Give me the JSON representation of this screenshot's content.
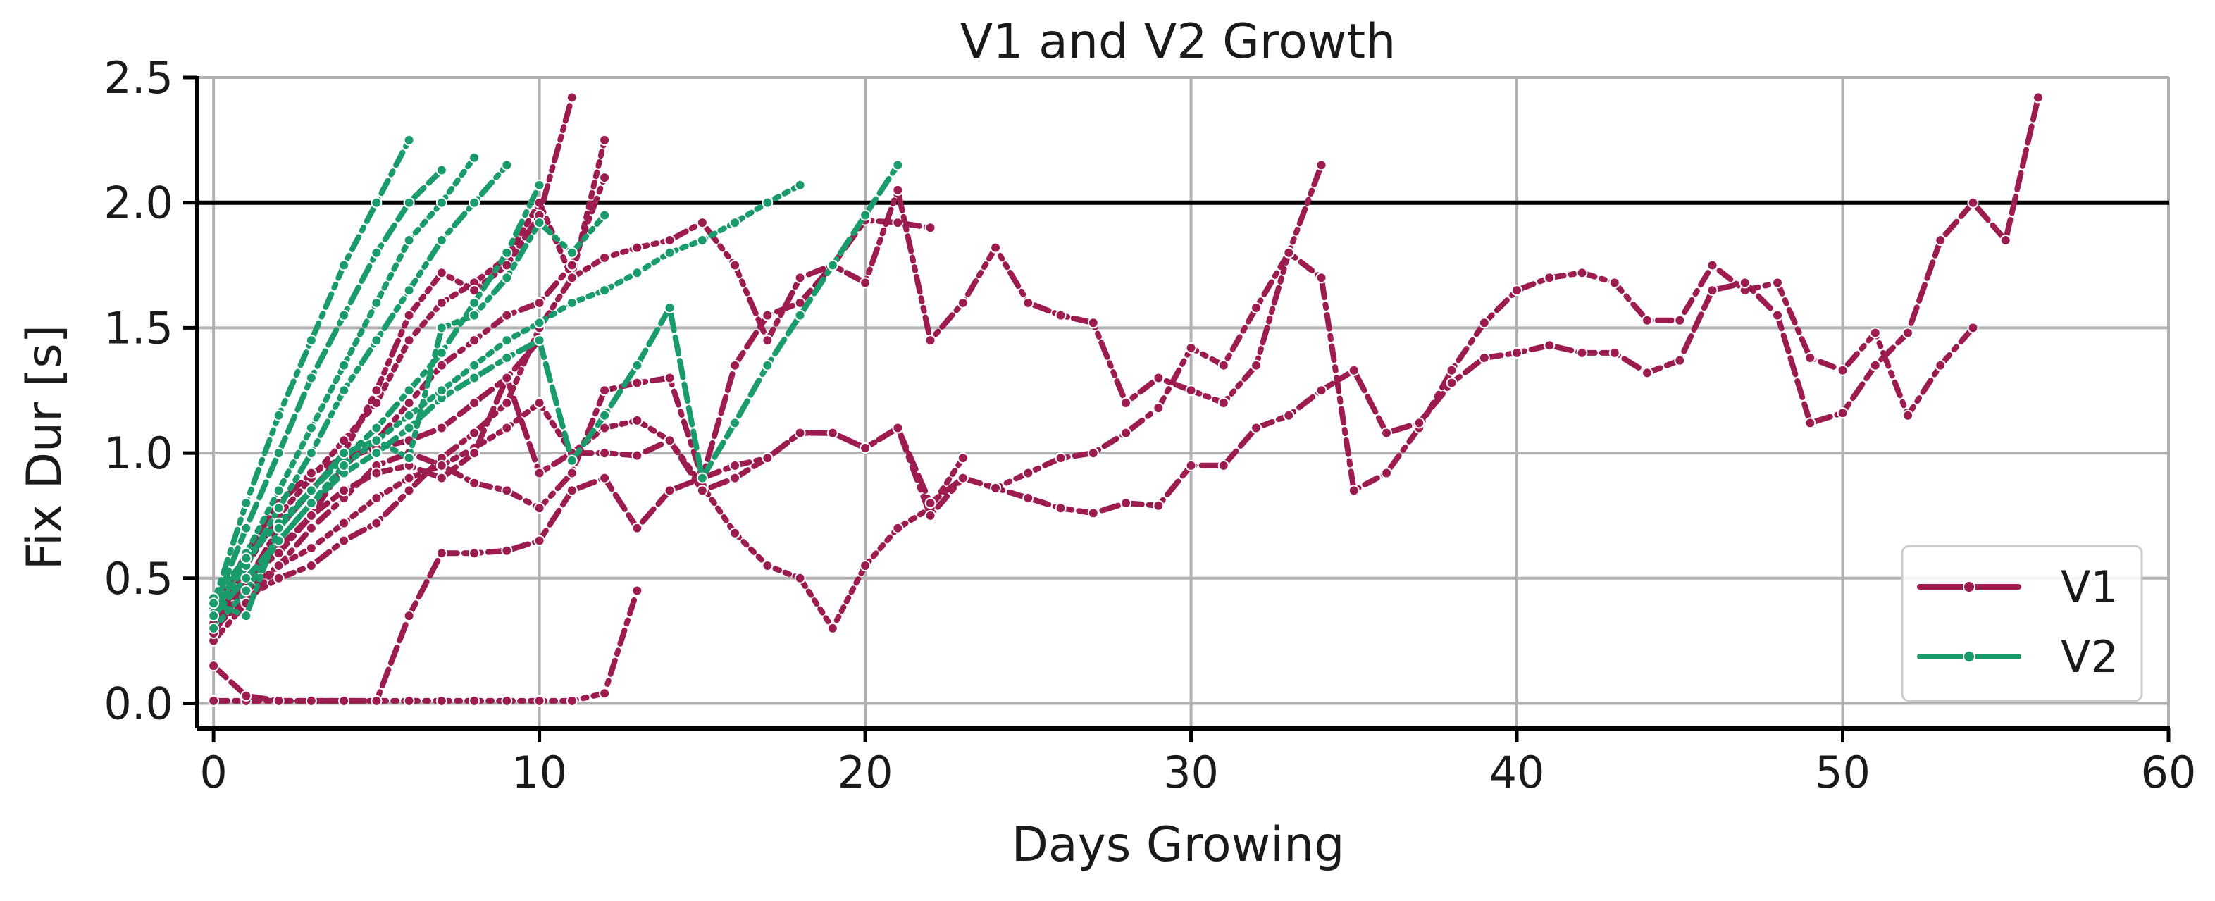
{
  "chart_data": {
    "type": "line",
    "title": "V1 and V2 Growth",
    "xlabel": "Days Growing",
    "ylabel": "Fix Dur [s]",
    "xlim": [
      -0.5,
      60
    ],
    "ylim": [
      -0.1,
      2.5
    ],
    "xticks": [
      0,
      10,
      20,
      30,
      40,
      50,
      60
    ],
    "yticks": [
      0.0,
      0.5,
      1.0,
      1.5,
      2.0,
      2.5
    ],
    "xtick_labels": [
      "0",
      "10",
      "20",
      "30",
      "40",
      "50",
      "60"
    ],
    "ytick_labels": [
      "0.0",
      "0.5",
      "1.0",
      "1.5",
      "2.0",
      "2.5"
    ],
    "grid": true,
    "threshold": {
      "y": 2.0,
      "color": "#000000"
    },
    "legend": {
      "placement": "bottom-right",
      "entries": [
        {
          "label": "V1",
          "color": "#9c1c4f"
        },
        {
          "label": "V2",
          "color": "#1a9b6b"
        }
      ]
    },
    "groups": [
      {
        "name": "V1",
        "color": "#9c1c4f",
        "runs": [
          {
            "x": [
              0,
              1,
              2,
              3,
              4,
              5,
              6,
              7,
              8,
              9,
              10,
              11,
              12,
              13
            ],
            "y": [
              0.01,
              0.01,
              0.01,
              0.01,
              0.01,
              0.01,
              0.01,
              0.01,
              0.01,
              0.01,
              0.01,
              0.01,
              0.04,
              0.45
            ]
          },
          {
            "x": [
              0,
              1,
              2,
              3,
              4,
              5,
              6,
              7,
              8,
              9,
              10,
              11,
              12,
              13,
              14,
              15,
              16,
              17,
              18,
              19,
              20,
              21,
              22
            ],
            "y": [
              0.15,
              0.03,
              0.01,
              0.01,
              0.01,
              0.01,
              0.35,
              0.6,
              0.6,
              0.61,
              0.65,
              0.85,
              0.9,
              0.7,
              0.85,
              0.9,
              1.35,
              1.55,
              1.6,
              1.75,
              1.93,
              1.92,
              1.9
            ]
          },
          {
            "x": [
              0,
              1,
              2,
              3,
              4,
              5,
              6,
              7,
              8,
              9,
              10,
              11,
              12,
              13,
              14,
              15,
              16,
              17,
              18,
              19,
              20,
              21,
              22,
              23
            ],
            "y": [
              0.3,
              0.45,
              0.55,
              0.62,
              0.72,
              0.82,
              0.9,
              0.95,
              1.02,
              1.1,
              1.2,
              1.0,
              1.1,
              1.13,
              1.05,
              0.87,
              0.68,
              0.55,
              0.5,
              0.3,
              0.55,
              0.7,
              0.78,
              0.98
            ]
          },
          {
            "x": [
              0,
              1,
              2,
              3,
              4,
              5,
              6,
              7,
              8,
              9,
              10,
              11,
              12,
              13,
              14,
              15,
              16,
              17,
              18,
              19,
              20,
              21,
              22,
              23,
              24,
              25,
              26,
              27,
              28,
              29,
              30,
              31,
              32,
              33,
              34
            ],
            "y": [
              0.3,
              0.42,
              0.5,
              0.55,
              0.65,
              0.72,
              0.85,
              0.98,
              1.08,
              1.2,
              1.5,
              1.7,
              1.78,
              1.82,
              1.85,
              1.92,
              1.75,
              1.45,
              1.7,
              1.75,
              1.68,
              2.05,
              1.45,
              1.6,
              1.82,
              1.6,
              1.55,
              1.52,
              1.2,
              1.3,
              1.25,
              1.2,
              1.35,
              1.8,
              2.15
            ]
          },
          {
            "x": [
              0,
              1,
              2,
              3,
              4,
              5,
              6,
              7,
              8,
              9,
              10,
              11,
              12,
              13,
              14,
              15,
              16,
              17,
              18,
              19,
              20,
              21,
              22,
              23,
              24,
              25,
              26,
              27,
              28,
              29,
              30,
              31,
              32,
              33,
              34,
              35,
              36,
              37,
              38,
              39,
              40,
              41,
              42,
              43,
              44,
              45,
              46,
              47,
              48,
              49,
              50,
              51,
              52,
              53,
              54
            ],
            "y": [
              0.25,
              0.4,
              0.55,
              0.7,
              0.82,
              0.95,
              1.0,
              0.95,
              0.88,
              0.85,
              0.78,
              0.92,
              1.25,
              1.28,
              1.3,
              0.9,
              0.95,
              0.98,
              1.08,
              1.08,
              1.02,
              1.1,
              0.75,
              0.9,
              0.86,
              0.92,
              0.98,
              1.0,
              1.08,
              1.18,
              1.42,
              1.35,
              1.58,
              1.8,
              1.7,
              0.85,
              0.92,
              1.1,
              1.33,
              1.52,
              1.65,
              1.7,
              1.72,
              1.68,
              1.53,
              1.53,
              1.75,
              1.65,
              1.68,
              1.38,
              1.33,
              1.48,
              1.15,
              1.35,
              1.5
            ]
          },
          {
            "x": [
              0,
              1,
              2,
              3,
              4,
              5,
              6,
              7,
              8,
              9,
              10,
              11,
              12,
              13,
              14,
              15,
              16,
              17,
              18,
              19,
              20,
              21,
              22,
              23,
              24,
              25,
              26,
              27,
              28,
              29,
              30,
              31,
              32,
              33,
              34,
              35,
              36,
              37,
              38,
              39,
              40,
              41,
              42,
              43,
              44,
              45,
              46,
              47,
              48,
              49,
              50,
              51,
              52,
              53,
              54,
              55,
              56
            ],
            "y": [
              0.35,
              0.5,
              0.62,
              0.75,
              0.85,
              0.92,
              0.95,
              0.9,
              1.0,
              1.3,
              0.92,
              1.0,
              1.0,
              0.99,
              1.05,
              0.85,
              0.9,
              0.98,
              1.08,
              1.08,
              1.02,
              1.1,
              0.8,
              0.9,
              0.86,
              0.82,
              0.78,
              0.76,
              0.8,
              0.79,
              0.95,
              0.95,
              1.1,
              1.15,
              1.25,
              1.33,
              1.08,
              1.12,
              1.28,
              1.38,
              1.4,
              1.43,
              1.4,
              1.4,
              1.32,
              1.37,
              1.65,
              1.68,
              1.55,
              1.12,
              1.16,
              1.35,
              1.48,
              1.85,
              2.0,
              1.85,
              2.42
            ]
          },
          {
            "x": [
              0,
              1,
              2,
              3,
              4,
              5,
              6,
              7,
              8,
              9,
              10,
              11,
              12
            ],
            "y": [
              0.3,
              0.55,
              0.75,
              0.9,
              1.05,
              1.2,
              1.45,
              1.6,
              1.68,
              1.78,
              2.0,
              1.7,
              2.25
            ]
          },
          {
            "x": [
              0,
              1,
              2,
              3,
              4,
              5,
              6,
              7,
              8,
              9,
              10,
              11
            ],
            "y": [
              0.28,
              0.48,
              0.7,
              0.85,
              1.0,
              1.25,
              1.55,
              1.72,
              1.65,
              1.75,
              1.95,
              2.42
            ]
          },
          {
            "x": [
              0,
              1,
              2,
              3,
              4,
              5,
              6,
              7,
              8,
              9,
              10,
              11,
              12
            ],
            "y": [
              0.32,
              0.5,
              0.6,
              0.75,
              0.95,
              1.05,
              1.2,
              1.35,
              1.45,
              1.55,
              1.6,
              1.75,
              2.1
            ]
          },
          {
            "x": [
              0,
              1,
              2,
              3,
              4,
              5,
              6,
              7,
              8,
              9,
              10
            ],
            "y": [
              0.35,
              0.6,
              0.8,
              0.92,
              0.98,
              1.02,
              1.05,
              1.1,
              1.2,
              1.3,
              1.45
            ]
          }
        ]
      },
      {
        "name": "V2",
        "color": "#1a9b6b",
        "runs": [
          {
            "x": [
              0,
              1,
              2,
              3,
              4,
              5,
              6
            ],
            "y": [
              0.4,
              0.8,
              1.15,
              1.45,
              1.75,
              2.0,
              2.25
            ]
          },
          {
            "x": [
              0,
              1,
              2,
              3,
              4,
              5,
              6,
              7
            ],
            "y": [
              0.38,
              0.7,
              1.0,
              1.3,
              1.55,
              1.8,
              2.0,
              2.13
            ]
          },
          {
            "x": [
              0,
              1,
              2,
              3,
              4,
              5,
              6,
              7,
              8
            ],
            "y": [
              0.35,
              0.6,
              0.85,
              1.1,
              1.35,
              1.6,
              1.85,
              2.0,
              2.18
            ]
          },
          {
            "x": [
              0,
              1,
              2,
              3,
              4,
              5,
              6,
              7,
              8,
              9
            ],
            "y": [
              0.36,
              0.55,
              0.78,
              1.0,
              1.25,
              1.45,
              1.65,
              1.85,
              2.0,
              2.15
            ]
          },
          {
            "x": [
              0,
              1,
              2,
              3,
              4,
              5,
              6,
              7,
              8,
              9,
              10
            ],
            "y": [
              0.42,
              0.58,
              0.72,
              0.85,
              0.98,
              1.1,
              1.25,
              1.4,
              1.6,
              1.8,
              2.07
            ]
          },
          {
            "x": [
              0,
              1,
              2,
              3,
              4,
              5,
              6,
              7,
              8,
              9,
              10,
              11,
              12,
              13,
              14,
              15,
              16,
              17,
              18,
              19,
              20,
              21
            ],
            "y": [
              0.35,
              0.5,
              0.65,
              0.8,
              0.92,
              1.0,
              1.1,
              1.22,
              1.3,
              1.38,
              1.45,
              0.97,
              1.15,
              1.35,
              1.58,
              0.9,
              1.12,
              1.35,
              1.55,
              1.75,
              1.95,
              2.15
            ]
          },
          {
            "x": [
              0,
              1,
              2,
              3,
              4,
              5,
              6,
              7,
              8,
              9,
              10,
              11,
              12,
              13,
              14,
              15,
              16,
              17,
              18
            ],
            "y": [
              0.3,
              0.45,
              0.65,
              0.8,
              0.95,
              1.05,
              1.15,
              1.25,
              1.35,
              1.45,
              1.52,
              1.6,
              1.65,
              1.72,
              1.8,
              1.85,
              1.92,
              2.0,
              2.07
            ]
          },
          {
            "x": [
              0,
              1,
              2,
              3,
              4,
              5,
              6,
              7,
              8,
              9,
              10,
              11,
              12
            ],
            "y": [
              0.4,
              0.35,
              0.7,
              0.85,
              1.0,
              1.05,
              0.98,
              1.5,
              1.55,
              1.7,
              1.92,
              1.8,
              1.95
            ]
          }
        ]
      }
    ]
  }
}
